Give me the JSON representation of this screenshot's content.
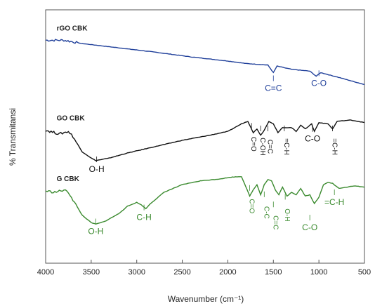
{
  "chart_data": {
    "type": "line",
    "xlabel": "Wavenumber (cm⁻¹)",
    "ylabel": "% Transmitansi",
    "xlim": [
      4000,
      500
    ],
    "x_reversed": true,
    "x_ticks": [
      "4000",
      "3500",
      "3000",
      "2500",
      "2000",
      "1500",
      "1000",
      "500"
    ],
    "y_ticks_shown": false,
    "series": [
      {
        "name": "rGO CBK",
        "color": "#1f3f9a",
        "points": [
          [
            4000,
            88
          ],
          [
            3800,
            88
          ],
          [
            3600,
            86.7
          ],
          [
            3200,
            85
          ],
          [
            2800,
            83.3
          ],
          [
            2400,
            81.4
          ],
          [
            2000,
            79.8
          ],
          [
            1800,
            78.8
          ],
          [
            1560,
            78.2
          ],
          [
            1500,
            75.2
          ],
          [
            1460,
            77.8
          ],
          [
            1300,
            76.5
          ],
          [
            1100,
            75.8
          ],
          [
            1030,
            73.8
          ],
          [
            980,
            75.2
          ],
          [
            800,
            73.5
          ],
          [
            600,
            71.5
          ],
          [
            500,
            70.5
          ]
        ],
        "annotations": [
          {
            "text": "C=C",
            "x": 1500,
            "y": 68,
            "color": "#1f3f9a"
          },
          {
            "text": "C-O",
            "x": 1000,
            "y": 70,
            "color": "#1f3f9a"
          }
        ]
      },
      {
        "name": "GO CBK",
        "color": "#111111",
        "points": [
          [
            4000,
            52.5
          ],
          [
            3850,
            51
          ],
          [
            3750,
            52
          ],
          [
            3700,
            50
          ],
          [
            3600,
            44
          ],
          [
            3500,
            41.5
          ],
          [
            3450,
            40.5
          ],
          [
            3300,
            41.5
          ],
          [
            3100,
            43.5
          ],
          [
            2800,
            46
          ],
          [
            2500,
            48.5
          ],
          [
            2200,
            50.5
          ],
          [
            2000,
            52
          ],
          [
            1850,
            55
          ],
          [
            1780,
            56
          ],
          [
            1720,
            51.5
          ],
          [
            1680,
            53
          ],
          [
            1640,
            50.5
          ],
          [
            1600,
            52.5
          ],
          [
            1550,
            56
          ],
          [
            1500,
            55
          ],
          [
            1450,
            51.5
          ],
          [
            1400,
            53.5
          ],
          [
            1300,
            53.5
          ],
          [
            1250,
            52
          ],
          [
            1200,
            54.5
          ],
          [
            1150,
            53
          ],
          [
            1080,
            55
          ],
          [
            1050,
            52
          ],
          [
            1000,
            55.5
          ],
          [
            900,
            55
          ],
          [
            850,
            53
          ],
          [
            800,
            56
          ],
          [
            650,
            56.5
          ],
          [
            500,
            55.5
          ]
        ],
        "annotations": [
          {
            "text": "O-H",
            "x": 3440,
            "y": 36,
            "color": "#111111"
          },
          {
            "text": "C=O",
            "x": 1740,
            "y": 47,
            "color": "#111111",
            "vertical": true
          },
          {
            "text": "C-OH",
            "x": 1640,
            "y": 46,
            "color": "#111111",
            "vertical": true
          },
          {
            "text": "C=C",
            "x": 1560,
            "y": 46,
            "color": "#111111",
            "vertical": true
          },
          {
            "text": "=C-H",
            "x": 1380,
            "y": 46,
            "color": "#111111",
            "vertical": true
          },
          {
            "text": "C-O",
            "x": 1070,
            "y": 48,
            "color": "#111111"
          },
          {
            "text": "=C-H",
            "x": 850,
            "y": 46,
            "color": "#111111",
            "vertical": true
          }
        ]
      },
      {
        "name": "G CBK",
        "color": "#3a8a2e",
        "points": [
          [
            4000,
            28.5
          ],
          [
            3900,
            28
          ],
          [
            3800,
            28.8
          ],
          [
            3750,
            28
          ],
          [
            3700,
            25
          ],
          [
            3600,
            19
          ],
          [
            3500,
            16
          ],
          [
            3450,
            15.4
          ],
          [
            3350,
            16.5
          ],
          [
            3200,
            19.5
          ],
          [
            3100,
            22.5
          ],
          [
            3000,
            24
          ],
          [
            2950,
            23
          ],
          [
            2900,
            21.5
          ],
          [
            2850,
            23.5
          ],
          [
            2700,
            28
          ],
          [
            2500,
            31
          ],
          [
            2300,
            32.5
          ],
          [
            2100,
            33.2
          ],
          [
            1950,
            34
          ],
          [
            1850,
            34.2
          ],
          [
            1800,
            30
          ],
          [
            1760,
            26.5
          ],
          [
            1720,
            29
          ],
          [
            1680,
            31
          ],
          [
            1640,
            27
          ],
          [
            1600,
            31
          ],
          [
            1560,
            33
          ],
          [
            1520,
            32.5
          ],
          [
            1480,
            29
          ],
          [
            1440,
            27
          ],
          [
            1400,
            30
          ],
          [
            1350,
            26.5
          ],
          [
            1300,
            28
          ],
          [
            1250,
            27
          ],
          [
            1200,
            29.5
          ],
          [
            1150,
            26.5
          ],
          [
            1100,
            27
          ],
          [
            1050,
            23.5
          ],
          [
            1000,
            26
          ],
          [
            950,
            31
          ],
          [
            900,
            32
          ],
          [
            850,
            31.5
          ],
          [
            780,
            29.5
          ],
          [
            700,
            30
          ],
          [
            600,
            30.5
          ],
          [
            500,
            30
          ]
        ],
        "annotations": [
          {
            "text": "O-H",
            "x": 3450,
            "y": 11.5,
            "color": "#3a8a2e"
          },
          {
            "text": "C-H",
            "x": 2920,
            "y": 17,
            "color": "#3a8a2e"
          },
          {
            "text": "C=O",
            "x": 1760,
            "y": 22.5,
            "color": "#3a8a2e",
            "vertical": true
          },
          {
            "text": "C-C",
            "x": 1600,
            "y": 20,
            "color": "#3a8a2e",
            "vertical": true
          },
          {
            "text": "C=C",
            "x": 1500,
            "y": 16,
            "color": "#3a8a2e",
            "vertical": true
          },
          {
            "text": "O-H",
            "x": 1370,
            "y": 19,
            "color": "#3a8a2e",
            "vertical": true
          },
          {
            "text": "C-O",
            "x": 1100,
            "y": 13,
            "color": "#3a8a2e"
          },
          {
            "text": "=C-H",
            "x": 830,
            "y": 23,
            "color": "#3a8a2e"
          }
        ]
      }
    ],
    "ylim": [
      0,
      100
    ]
  }
}
